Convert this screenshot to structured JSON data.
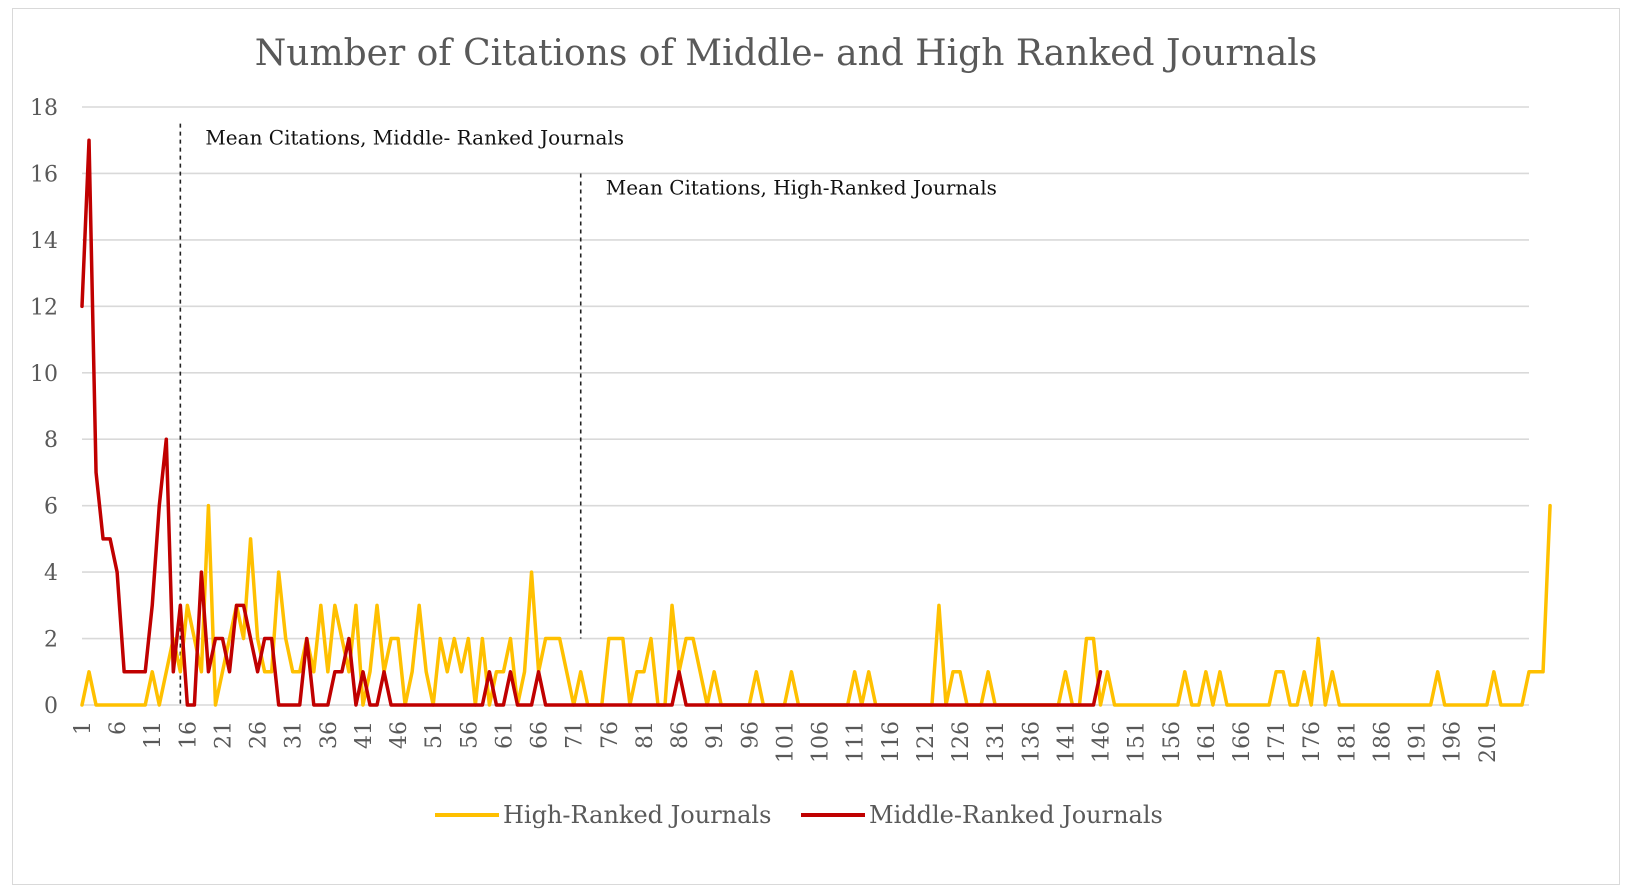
{
  "chart_data": {
    "type": "line",
    "title": "Number of Citations of Middle- and High Ranked Journals",
    "xlabel": "",
    "ylabel": "",
    "ylim": [
      0,
      18
    ],
    "yticks": [
      0,
      2,
      4,
      6,
      8,
      10,
      12,
      14,
      16,
      18
    ],
    "xticks": [
      1,
      6,
      11,
      16,
      21,
      26,
      31,
      36,
      41,
      46,
      51,
      56,
      61,
      66,
      71,
      76,
      81,
      86,
      91,
      96,
      101,
      106,
      111,
      116,
      121,
      126,
      131,
      136,
      141,
      146,
      151,
      156,
      161,
      166,
      171,
      176,
      181,
      186,
      191,
      196,
      201
    ],
    "x_range": [
      1,
      207
    ],
    "grid": "horizontal",
    "legend_position": "bottom",
    "series": [
      {
        "name": "High-Ranked Journals",
        "color": "#FFC000",
        "values": [
          0,
          1,
          0,
          0,
          0,
          0,
          0,
          0,
          0,
          0,
          1,
          0,
          1,
          2,
          1,
          3,
          2,
          1,
          6,
          0,
          1,
          2,
          3,
          2,
          5,
          2,
          1,
          1,
          4,
          2,
          1,
          1,
          2,
          1,
          3,
          1,
          3,
          2,
          1,
          3,
          0,
          1,
          3,
          1,
          2,
          2,
          0,
          1,
          3,
          1,
          0,
          2,
          1,
          2,
          1,
          2,
          0,
          2,
          0,
          1,
          1,
          2,
          0,
          1,
          4,
          1,
          2,
          2,
          2,
          1,
          0,
          1,
          0,
          0,
          0,
          2,
          2,
          2,
          0,
          1,
          1,
          2,
          0,
          0,
          3,
          1,
          2,
          2,
          1,
          0,
          1,
          0,
          0,
          0,
          0,
          0,
          1,
          0,
          0,
          0,
          0,
          1,
          0,
          0,
          0,
          0,
          0,
          0,
          0,
          0,
          1,
          0,
          1,
          0,
          0,
          0,
          0,
          0,
          0,
          0,
          0,
          0,
          3,
          0,
          1,
          1,
          0,
          0,
          0,
          1,
          0,
          0,
          0,
          0,
          0,
          0,
          0,
          0,
          0,
          0,
          1,
          0,
          0,
          2,
          2,
          0,
          1,
          0,
          0,
          0,
          0,
          0,
          0,
          0,
          0,
          0,
          0,
          1,
          0,
          0,
          1,
          0,
          1,
          0,
          0,
          0,
          0,
          0,
          0,
          0,
          1,
          1,
          0,
          0,
          1,
          0,
          2,
          0,
          1,
          0,
          0,
          0,
          0,
          0,
          0,
          0,
          0,
          0,
          0,
          0,
          0,
          0,
          0,
          1,
          0,
          0,
          0,
          0,
          0,
          0,
          0,
          1,
          0,
          0,
          0,
          0,
          1,
          1,
          1,
          6
        ]
      },
      {
        "name": "Middle-Ranked  Journals",
        "color": "#C00000",
        "values": [
          12,
          17,
          7,
          5,
          5,
          4,
          1,
          1,
          1,
          1,
          3,
          6,
          8,
          1,
          3,
          0,
          0,
          4,
          1,
          2,
          2,
          1,
          3,
          3,
          2,
          1,
          2,
          2,
          0,
          0,
          0,
          0,
          2,
          0,
          0,
          0,
          1,
          1,
          2,
          0,
          1,
          0,
          0,
          1,
          0,
          0,
          0,
          0,
          0,
          0,
          0,
          0,
          0,
          0,
          0,
          0,
          0,
          0,
          1,
          0,
          0,
          1,
          0,
          0,
          0,
          1,
          0,
          0,
          0,
          0,
          0,
          0,
          0,
          0,
          0,
          0,
          0,
          0,
          0,
          0,
          0,
          0,
          0,
          0,
          0,
          1,
          0,
          0,
          0,
          0,
          0,
          0,
          0,
          0,
          0,
          0,
          0,
          0,
          0,
          0,
          0,
          0,
          0,
          0,
          0,
          0,
          0,
          0,
          0,
          0,
          0,
          0,
          0,
          0,
          0,
          0,
          0,
          0,
          0,
          0,
          0,
          0,
          0,
          0,
          0,
          0,
          0,
          0,
          0,
          0,
          0,
          0,
          0,
          0,
          0,
          0,
          0,
          0,
          0,
          0,
          0,
          0,
          0,
          0,
          0,
          1
        ]
      }
    ],
    "annotations": [
      {
        "label": "Mean Citations, Middle- Ranked Journals",
        "x": 15,
        "y_top": 17.5,
        "y_bottom": 0
      },
      {
        "label": "Mean Citations, High-Ranked Journals",
        "x": 72,
        "y_top": 16,
        "y_bottom": 2
      }
    ]
  }
}
